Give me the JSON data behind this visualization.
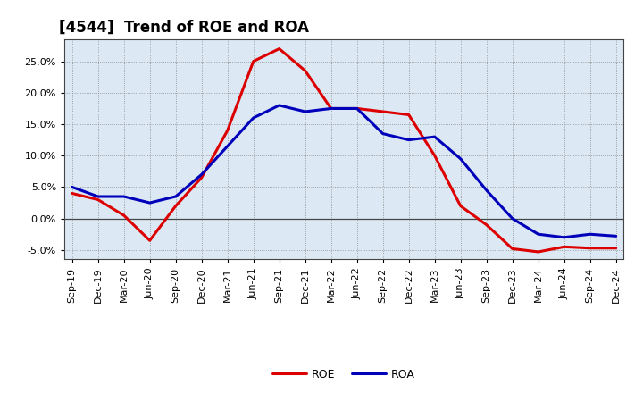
{
  "title": "[4544]  Trend of ROE and ROA",
  "labels": [
    "Sep-19",
    "Dec-19",
    "Mar-20",
    "Jun-20",
    "Sep-20",
    "Dec-20",
    "Mar-21",
    "Jun-21",
    "Sep-21",
    "Dec-21",
    "Mar-22",
    "Jun-22",
    "Sep-22",
    "Dec-22",
    "Mar-23",
    "Jun-23",
    "Sep-23",
    "Dec-23",
    "Mar-24",
    "Jun-24",
    "Sep-24",
    "Dec-24"
  ],
  "ROE": [
    4.0,
    3.0,
    0.5,
    -3.5,
    2.0,
    6.5,
    14.0,
    25.0,
    27.0,
    23.5,
    17.5,
    17.5,
    17.0,
    16.5,
    10.0,
    2.0,
    -1.0,
    -4.8,
    -5.3,
    -4.5,
    -4.7,
    -4.7
  ],
  "ROA": [
    5.0,
    3.5,
    3.5,
    2.5,
    3.5,
    7.0,
    11.5,
    16.0,
    18.0,
    17.0,
    17.5,
    17.5,
    13.5,
    12.5,
    13.0,
    9.5,
    4.5,
    0.0,
    -2.5,
    -3.0,
    -2.5,
    -2.8
  ],
  "roe_color": "#dd0000",
  "roa_color": "#0000bb",
  "line_width": 2.2,
  "bg_color": "#ffffff",
  "plot_bg_color": "#dce9f5",
  "grid_color": "#888888",
  "ylim": [
    -6.5,
    28.5
  ],
  "yticks": [
    -5.0,
    0.0,
    5.0,
    10.0,
    15.0,
    20.0,
    25.0
  ],
  "legend_labels": [
    "ROE",
    "ROA"
  ],
  "title_fontsize": 12,
  "tick_fontsize": 8
}
